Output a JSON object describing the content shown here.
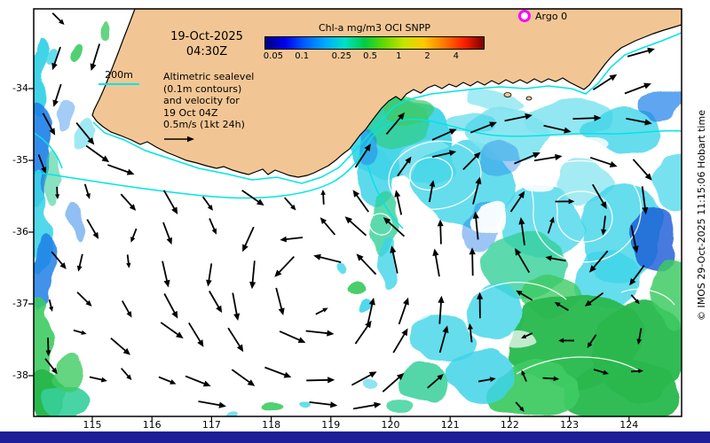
{
  "header": {
    "date": "19-Oct-2025",
    "time": "04:30Z"
  },
  "colorbar": {
    "title": "Chl-a mg/m3 OCI SNPP",
    "ticks": [
      "0.05",
      "0.1",
      "0.25",
      "0.5",
      "1",
      "2",
      "4"
    ],
    "gradient": [
      "#000080",
      "#0000ee",
      "#0060ff",
      "#00a8ff",
      "#00e0c8",
      "#00cc44",
      "#66d800",
      "#c8e400",
      "#ffc800",
      "#ff7800",
      "#ff2000",
      "#7a0000"
    ]
  },
  "argo": {
    "label": "Argo 0",
    "marker_color": "#ff00ff"
  },
  "depth_legend": {
    "label": "200m",
    "line_color": "#00e5e5"
  },
  "annotation": {
    "lines": [
      "Altimetric sealevel",
      "(0.1m contours)",
      "and velocity for",
      "19 Oct 04Z",
      "0.5m/s (1kt 24h)"
    ]
  },
  "credit": "© IMOS 29-Oct-2025 11:15:06 Hobart time",
  "axes": {
    "x_ticks": [
      "115",
      "116",
      "117",
      "118",
      "119",
      "120",
      "121",
      "122",
      "123",
      "124"
    ],
    "y_ticks": [
      "-34",
      "-35",
      "-36",
      "-37",
      "-38"
    ]
  },
  "map_colors": {
    "land": "#f2c694",
    "ocean": "#ffffff",
    "contour_200m": "#00e5e5",
    "sealevel_contour": "#ffffff",
    "arrow": "#000000",
    "bottom_bar": "#1e1e96"
  }
}
